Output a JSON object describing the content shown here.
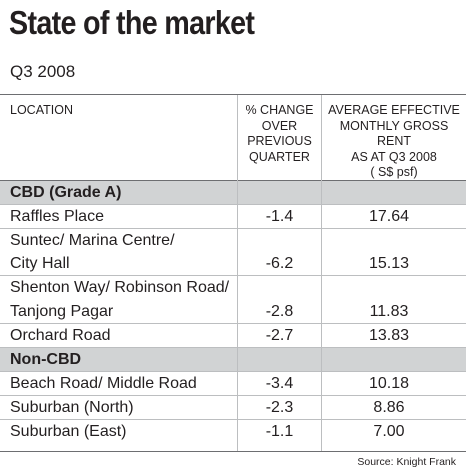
{
  "title": "State of the market",
  "subtitle": "Q3 2008",
  "headers": {
    "location": "LOCATION",
    "change": [
      "% CHANGE",
      "OVER",
      "PREVIOUS",
      "QUARTER"
    ],
    "rent": [
      "AVERAGE EFFECTIVE",
      "MONTHLY GROSS RENT",
      "AS AT Q3 2008",
      "( S$ psf)"
    ]
  },
  "sections": [
    {
      "label": "CBD (Grade A)",
      "rows": [
        {
          "location": [
            "Raffles Place"
          ],
          "change": "-1.4",
          "rent": "17.64"
        },
        {
          "location": [
            "Suntec/ Marina Centre/",
            "City Hall"
          ],
          "change": "-6.2",
          "rent": "15.13"
        },
        {
          "location": [
            "Shenton Way/ Robinson Road/",
            "Tanjong Pagar"
          ],
          "change": "-2.8",
          "rent": "11.83"
        },
        {
          "location": [
            "Orchard Road"
          ],
          "change": "-2.7",
          "rent": "13.83"
        }
      ]
    },
    {
      "label": "Non-CBD",
      "rows": [
        {
          "location": [
            "Beach Road/ Middle Road"
          ],
          "change": "-3.4",
          "rent": "10.18"
        },
        {
          "location": [
            "Suburban (North)"
          ],
          "change": "-2.3",
          "rent": "8.86"
        },
        {
          "location": [
            "Suburban (East)"
          ],
          "change": "-1.1",
          "rent": "7.00"
        }
      ]
    }
  ],
  "source": "Source: Knight Frank",
  "colors": {
    "section_band": "#d1d3d4",
    "rule": "#6d6e71",
    "divider": "#bcbec0",
    "text": "#231f20"
  }
}
